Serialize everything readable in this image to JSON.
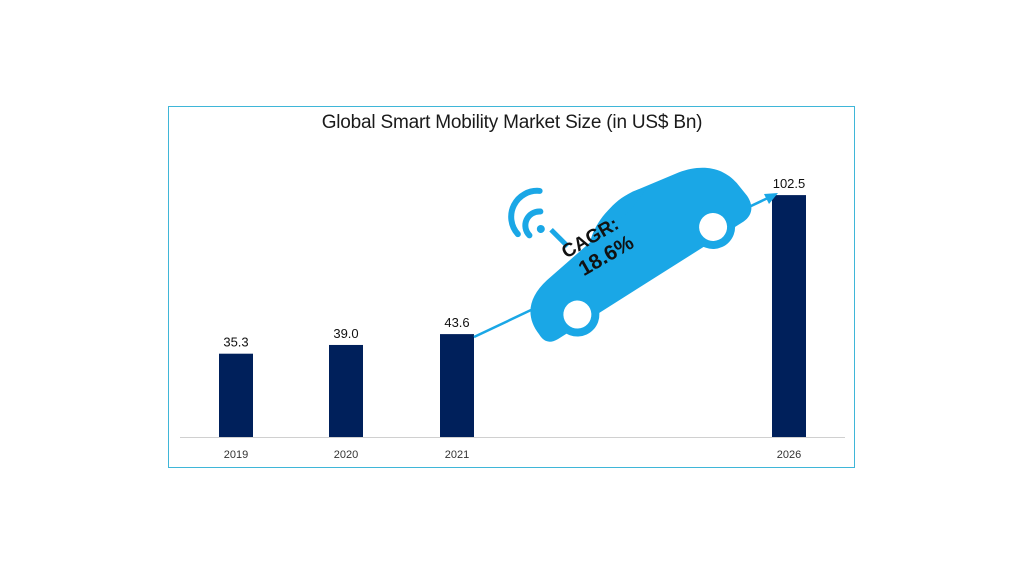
{
  "chart_data": {
    "type": "bar",
    "title": "Global Smart Mobility Market Size (in US$ Bn)",
    "categories": [
      "2019",
      "2020",
      "2021",
      "2026"
    ],
    "values": [
      35.3,
      39.0,
      43.6,
      102.5
    ],
    "value_labels": [
      "35.3",
      "39.0",
      "43.6",
      "102.5"
    ],
    "bar_color": "#00205b",
    "xlabel": "",
    "ylabel": "",
    "grid": false,
    "legend": "none",
    "annotation": {
      "line1": "CAGR:",
      "line2": "18.6%",
      "arrow_color": "#1aa7e6",
      "car_color": "#1aa7e6"
    }
  }
}
